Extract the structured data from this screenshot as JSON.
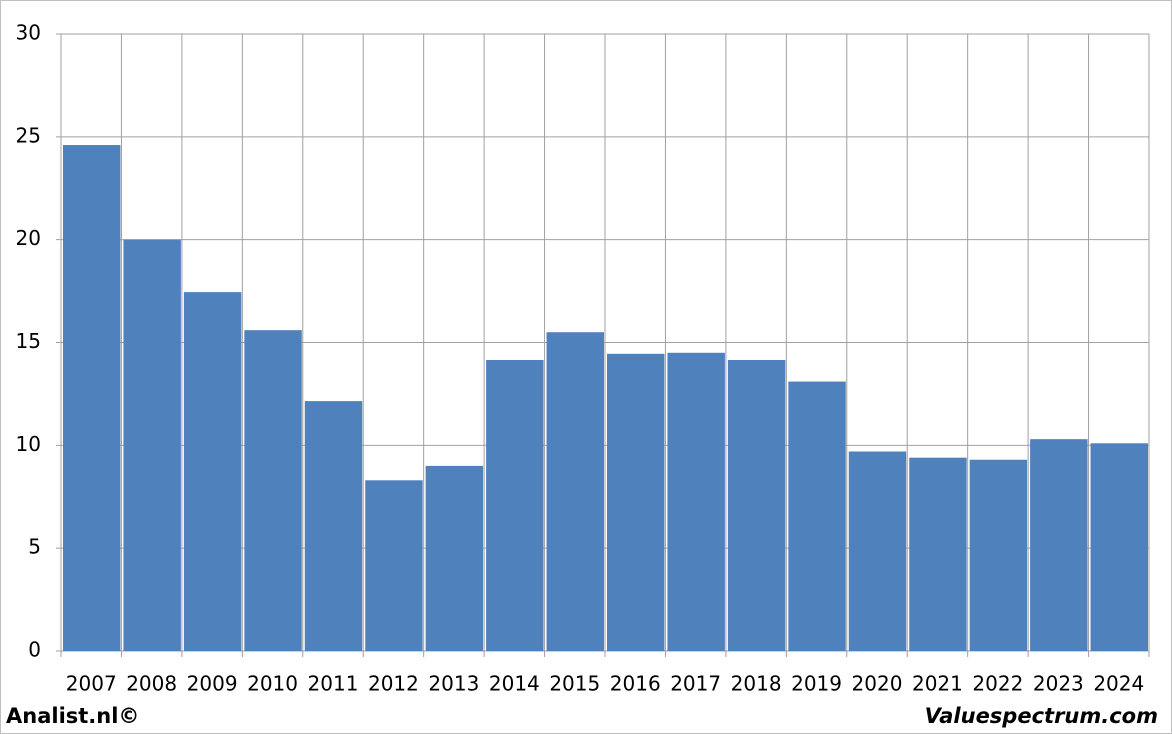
{
  "chart_data": {
    "type": "bar",
    "categories": [
      "2007",
      "2008",
      "2009",
      "2010",
      "2011",
      "2012",
      "2013",
      "2014",
      "2015",
      "2016",
      "2017",
      "2018",
      "2019",
      "2020",
      "2021",
      "2022",
      "2023",
      "2024"
    ],
    "values": [
      24.6,
      20.0,
      17.45,
      15.6,
      12.15,
      8.3,
      9.0,
      14.15,
      15.5,
      14.45,
      14.5,
      14.15,
      13.1,
      9.7,
      9.4,
      9.3,
      10.3,
      10.1
    ],
    "color": "#4f81bd",
    "ylim": [
      0,
      30
    ],
    "yticks": [
      0,
      5,
      10,
      15,
      20,
      25,
      30
    ],
    "grid": true,
    "annotations": [
      "Analist.nl©",
      "Valuespectrum.com"
    ]
  }
}
